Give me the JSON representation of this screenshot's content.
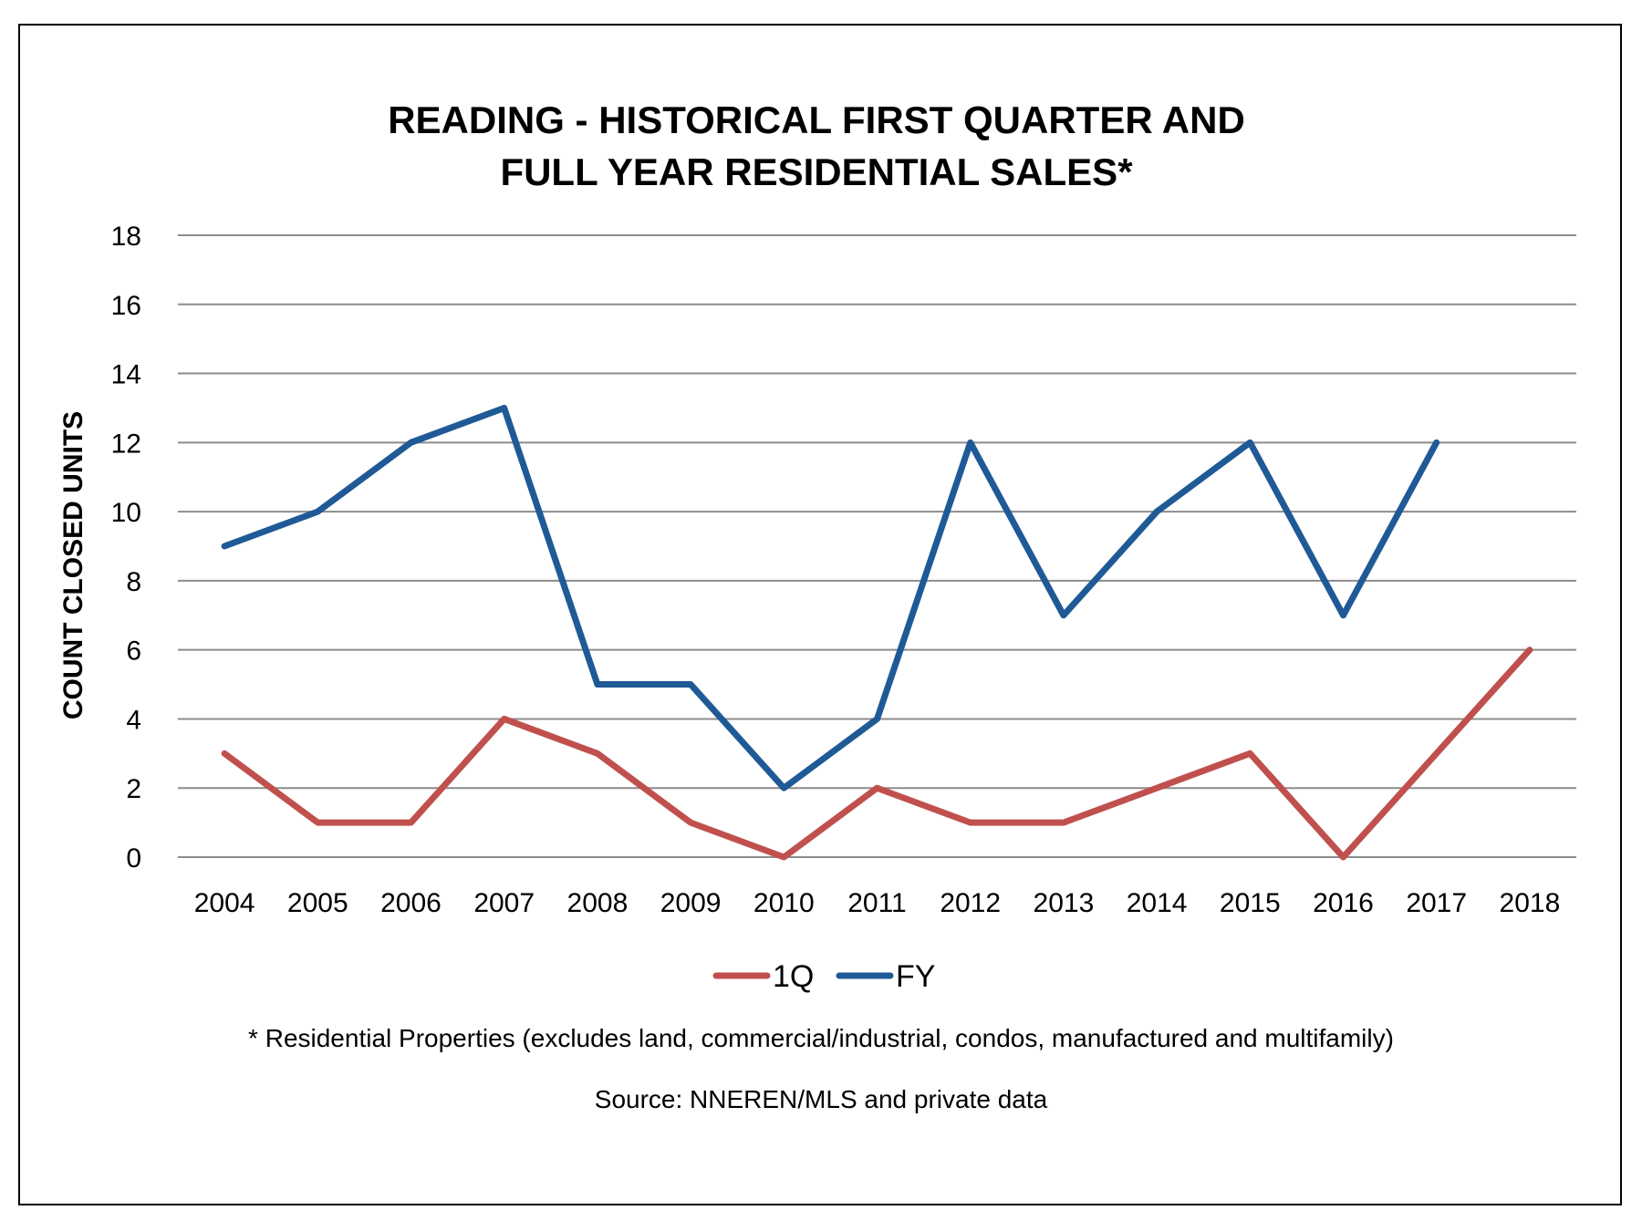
{
  "chart_data": {
    "type": "line",
    "title_lines": [
      "READING - HISTORICAL FIRST QUARTER AND",
      "FULL YEAR RESIDENTIAL SALES*"
    ],
    "ylabel": "COUNT CLOSED UNITS",
    "xlabel": "",
    "ylim": [
      0,
      18
    ],
    "yticks": [
      0,
      2,
      4,
      6,
      8,
      10,
      12,
      14,
      16,
      18
    ],
    "grid": true,
    "legend_position": "bottom",
    "categories": [
      "2004",
      "2005",
      "2006",
      "2007",
      "2008",
      "2009",
      "2010",
      "2011",
      "2012",
      "2013",
      "2014",
      "2015",
      "2016",
      "2017",
      "2018"
    ],
    "series": [
      {
        "name": "1Q",
        "color": "#c0504d",
        "values": [
          3,
          1,
          1,
          4,
          3,
          1,
          0,
          2,
          1,
          1,
          2,
          3,
          0,
          3,
          6
        ]
      },
      {
        "name": "FY",
        "color": "#1f5a96",
        "values": [
          9,
          10,
          12,
          13,
          5,
          5,
          2,
          4,
          12,
          7,
          10,
          12,
          7,
          12,
          null
        ]
      }
    ]
  },
  "footnote": "* Residential Properties (excludes land, commercial/industrial, condos, manufactured and multifamily)",
  "source": "Source: NNEREN/MLS and private data"
}
